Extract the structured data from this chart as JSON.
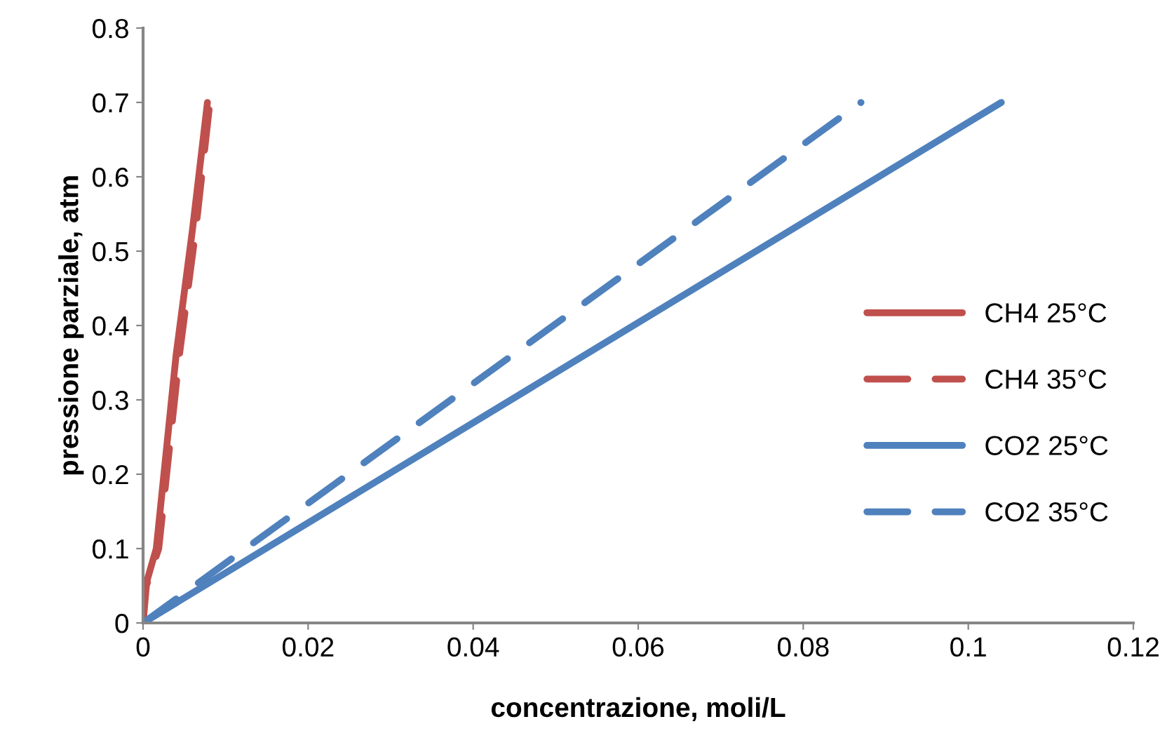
{
  "chart_data": {
    "type": "line",
    "xlabel": "concentrazione, moli/L",
    "ylabel": "pressione parziale, atm",
    "xlim": [
      0,
      0.12
    ],
    "xticks": [
      0,
      0.02,
      0.04,
      0.06,
      0.08,
      0.1,
      0.12
    ],
    "ylim": [
      0,
      0.8
    ],
    "yticks": [
      0,
      0.1,
      0.2,
      0.3,
      0.4,
      0.5,
      0.6,
      0.7,
      0.8
    ],
    "grid": false,
    "legend": "right",
    "marker": "none",
    "series": [
      {
        "name": "CH4 25°C",
        "color": "#c0504d",
        "line_style": "solid",
        "x": [
          0,
          0.0003,
          0.0016,
          0.004,
          0.006,
          0.0078
        ],
        "values": [
          0,
          0.05,
          0.1,
          0.36,
          0.53,
          0.7
        ]
      },
      {
        "name": "CH4 35°C",
        "color": "#c0504d",
        "line_style": "dashed",
        "x": [
          0,
          0.0004,
          0.0019,
          0.0044,
          0.0064,
          0.0081
        ],
        "values": [
          0,
          0.05,
          0.1,
          0.36,
          0.53,
          0.7
        ]
      },
      {
        "name": "CO2 25°C",
        "color": "#4f81bd",
        "line_style": "solid",
        "x": [
          0,
          0.104
        ],
        "values": [
          0,
          0.7
        ]
      },
      {
        "name": "CO2 35°C",
        "color": "#4f81bd",
        "line_style": "dashed",
        "x": [
          0,
          0.087
        ],
        "values": [
          0,
          0.7
        ]
      }
    ]
  }
}
